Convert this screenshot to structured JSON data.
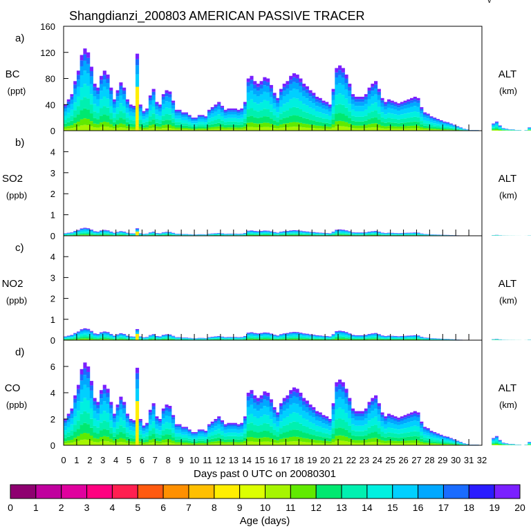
{
  "title": "Shangdianzi_200803 AMERICAN PASSIVE TRACER",
  "corner_mark": "v",
  "chart_data": [
    {
      "type": "area",
      "panel_label": "a)",
      "species": "BC",
      "unit": "(ppt)",
      "right_label": "ALT",
      "right_unit": "(km)",
      "ylim": [
        0,
        160
      ],
      "yticks": [
        "0",
        "40",
        "80",
        "120",
        "160"
      ],
      "scale": 20
    },
    {
      "type": "area",
      "panel_label": "b)",
      "species": "SO2",
      "unit": "(ppb)",
      "right_label": "ALT",
      "right_unit": "(km)",
      "ylim": [
        0,
        5
      ],
      "yticks": [
        "0",
        "1",
        "2",
        "3",
        "4"
      ],
      "scale": 0.06
    },
    {
      "type": "area",
      "panel_label": "c)",
      "species": "NO2",
      "unit": "(ppb)",
      "right_label": "ALT",
      "right_unit": "(km)",
      "ylim": [
        0,
        5
      ],
      "yticks": [
        "0",
        "1",
        "2",
        "3",
        "4"
      ],
      "scale": 0.09
    },
    {
      "type": "area",
      "panel_label": "d)",
      "species": "CO",
      "unit": "(ppb)",
      "right_label": "ALT",
      "right_unit": "(km)",
      "ylim": [
        0,
        8
      ],
      "yticks": [
        "0",
        "2",
        "4",
        "6"
      ],
      "scale": 1.0
    }
  ],
  "x_axis": {
    "label": "Days past 0 UTC on 20080301",
    "ticks": [
      "0",
      "1",
      "2",
      "3",
      "4",
      "5",
      "6",
      "7",
      "8",
      "9",
      "10",
      "11",
      "12",
      "13",
      "14",
      "15",
      "16",
      "17",
      "18",
      "19",
      "20",
      "21",
      "22",
      "23",
      "24",
      "25",
      "26",
      "27",
      "28",
      "29",
      "30",
      "31",
      "32"
    ],
    "range": [
      0,
      32
    ]
  },
  "co_series": {
    "day_step": 0.25,
    "total": [
      2.0,
      2.4,
      2.8,
      3.8,
      4.6,
      5.8,
      6.3,
      6.0,
      4.9,
      3.6,
      3.3,
      4.2,
      4.6,
      4.3,
      3.3,
      2.4,
      3.1,
      3.7,
      3.3,
      2.4,
      2.0,
      1.9,
      5.9,
      2.0,
      1.5,
      1.7,
      2.7,
      3.2,
      2.2,
      2.0,
      2.8,
      3.1,
      3.0,
      2.3,
      1.6,
      1.6,
      1.4,
      1.4,
      1.2,
      1.0,
      1.0,
      1.2,
      1.2,
      1.1,
      1.6,
      1.8,
      2.0,
      2.2,
      1.9,
      1.6,
      1.7,
      1.7,
      1.7,
      1.6,
      1.7,
      2.2,
      4.0,
      4.2,
      3.8,
      3.6,
      3.8,
      4.1,
      4.0,
      3.5,
      2.9,
      2.5,
      3.2,
      3.6,
      3.8,
      4.2,
      4.4,
      4.3,
      4.0,
      3.6,
      3.4,
      3.1,
      2.9,
      2.6,
      2.5,
      2.3,
      2.2,
      2.0,
      3.2,
      4.8,
      5.0,
      4.8,
      4.3,
      3.6,
      2.8,
      2.6,
      2.6,
      2.6,
      2.8,
      3.3,
      3.6,
      3.8,
      3.2,
      2.5,
      2.2,
      2.4,
      2.3,
      2.2,
      2.1,
      2.2,
      2.3,
      2.4,
      2.5,
      2.6,
      2.5,
      1.8,
      1.4,
      1.3,
      1.1,
      1.0,
      0.9,
      0.8,
      0.7,
      0.65,
      0.55,
      0.45,
      0.35,
      0.25,
      0.15,
      0.1,
      0.05,
      0.05,
      0.05,
      0.0,
      0.0,
      0.0,
      0.0,
      0.55,
      0.7,
      0.4,
      0.2,
      0.15,
      0.1,
      0.1,
      0.05,
      0.05,
      0.0,
      0.05,
      0.25,
      0.05
    ]
  },
  "colorbar": {
    "label": "Age (days)",
    "ticks": [
      "0",
      "1",
      "2",
      "3",
      "4",
      "5",
      "6",
      "7",
      "8",
      "9",
      "10",
      "11",
      "12",
      "13",
      "14",
      "15",
      "16",
      "17",
      "18",
      "19",
      "20"
    ],
    "colors": [
      "#8e0070",
      "#c0009e",
      "#e0009e",
      "#ff0080",
      "#ff1f50",
      "#ff5a10",
      "#ff9000",
      "#ffbf00",
      "#ffee00",
      "#dcff00",
      "#a6f500",
      "#61ea00",
      "#00e870",
      "#00f0b0",
      "#00f0e0",
      "#00d0ff",
      "#00a8ff",
      "#1a6cff",
      "#2a1cff",
      "#7a20ff"
    ]
  },
  "age_layers_colors": [
    "#a6f500",
    "#61ea00",
    "#00e870",
    "#00f0b0",
    "#00f0e0",
    "#00d0ff",
    "#00a8ff",
    "#1a6cff",
    "#7a20ff"
  ],
  "age_layers_fractions": [
    0.07,
    0.08,
    0.12,
    0.14,
    0.16,
    0.16,
    0.12,
    0.08,
    0.07
  ],
  "spike_color": "#ffee00"
}
